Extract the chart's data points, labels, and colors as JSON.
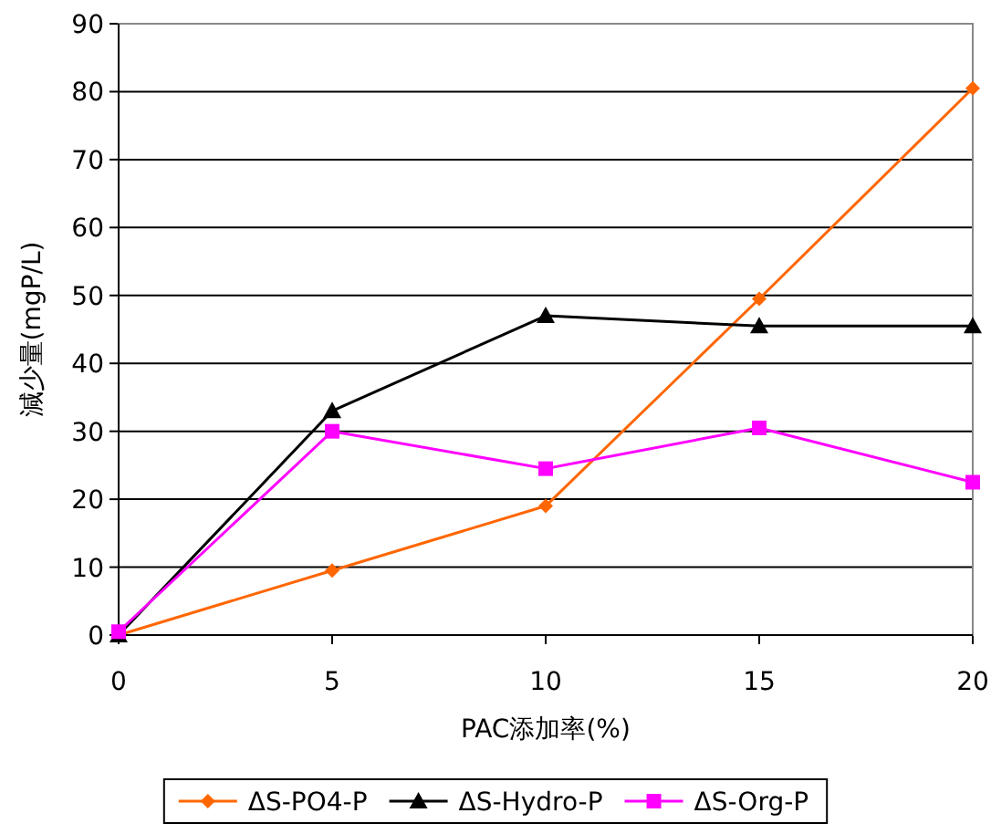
{
  "chart_data": {
    "type": "line",
    "xlabel": "PAC添加率(%)",
    "ylabel": "減少量(mgP/L)",
    "x": [
      0,
      5,
      10,
      15,
      20
    ],
    "xlim": [
      0,
      20
    ],
    "xticks": [
      0,
      5,
      10,
      15,
      20
    ],
    "ylim": [
      0,
      90
    ],
    "yticks": [
      0,
      10,
      20,
      30,
      40,
      50,
      60,
      70,
      80,
      90
    ],
    "grid": "y",
    "legend": "bottom",
    "series": [
      {
        "name": "ΔS-PO4-P",
        "color": "#ff6600",
        "marker": "diamond",
        "values": [
          0,
          9.5,
          19,
          49.5,
          80.5
        ]
      },
      {
        "name": "ΔS-Hydro-P",
        "color": "#000000",
        "marker": "triangle",
        "values": [
          0,
          33,
          47,
          45.5,
          45.5
        ]
      },
      {
        "name": "ΔS-Org-P",
        "color": "#ff00ff",
        "marker": "square",
        "values": [
          0.5,
          30,
          24.5,
          30.5,
          22.5
        ]
      }
    ]
  }
}
